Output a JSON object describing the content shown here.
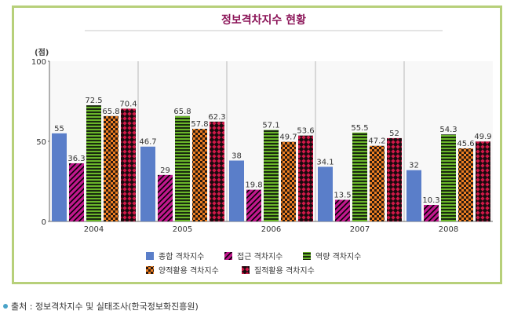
{
  "chart_data": {
    "type": "bar",
    "title": "정보격차지수 현황",
    "ylabel": "(점)",
    "xlabel": "",
    "ylim": [
      0,
      100
    ],
    "yticks": [
      0,
      50,
      100
    ],
    "categories": [
      "2004",
      "2005",
      "2006",
      "2007",
      "2008"
    ],
    "series": [
      {
        "name": "종합 격차지수",
        "values": [
          55,
          46.7,
          38,
          34.1,
          32
        ],
        "labels": [
          "55",
          "46.7",
          "38",
          "34.1",
          "32"
        ],
        "color": "#5a7ec9",
        "pattern": "solid"
      },
      {
        "name": "접근 격차지수",
        "values": [
          36.3,
          29,
          19.8,
          13.5,
          10.3
        ],
        "labels": [
          "36.3",
          "29",
          "19.8",
          "13.5",
          "10.3"
        ],
        "color": "#c2188e",
        "pattern": "diagonal"
      },
      {
        "name": "역량 격차지수",
        "values": [
          72.5,
          65.8,
          57.1,
          55.5,
          54.3
        ],
        "labels": [
          "72.5",
          "65.8",
          "57.1",
          "55.5",
          "54.3"
        ],
        "color": "#4a8a1e",
        "pattern": "horizontal"
      },
      {
        "name": "양적활용 격차지수",
        "values": [
          65.8,
          57.8,
          49.7,
          47.2,
          45.6
        ],
        "labels": [
          "65.8",
          "57.8",
          "49.7",
          "47.2",
          "45.6"
        ],
        "color": "#ee7f22",
        "pattern": "checker"
      },
      {
        "name": "질적활용 격차지수",
        "values": [
          70.4,
          62.3,
          53.6,
          52,
          49.9
        ],
        "labels": [
          "70.4",
          "62.3",
          "53.6",
          "52",
          "49.9"
        ],
        "color": "#c01848",
        "pattern": "diamond"
      }
    ],
    "grid": false,
    "legend": "bottom"
  },
  "source": {
    "text": "출처 : 정보격차지수 및 실태조사(한국정보화진흥원)",
    "bullet_color": "#4aa3c8"
  }
}
